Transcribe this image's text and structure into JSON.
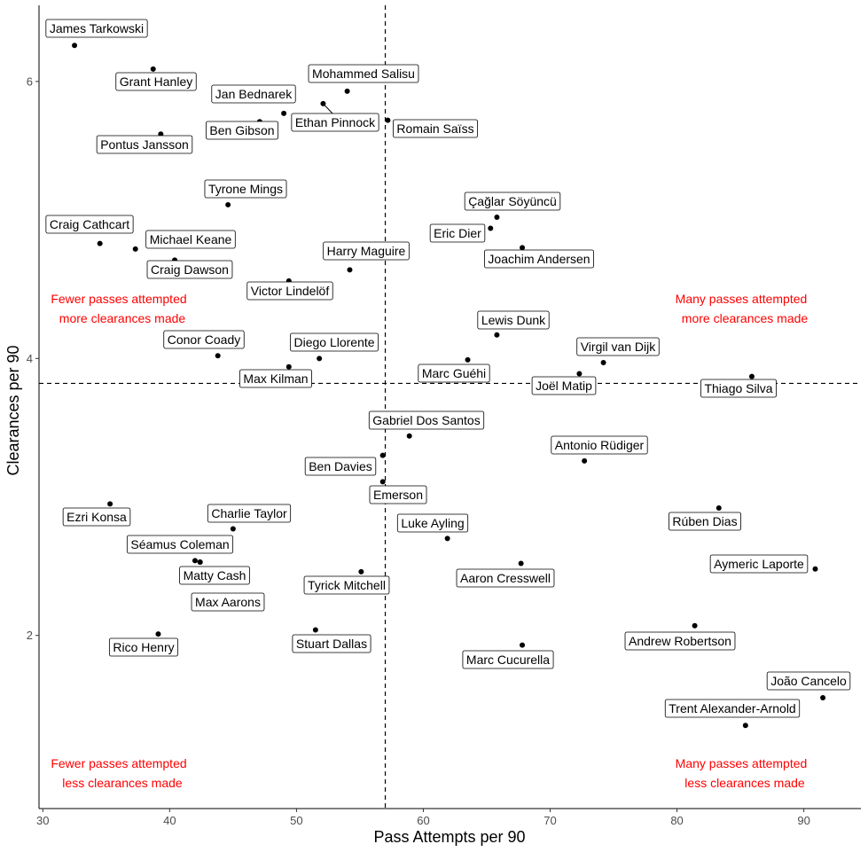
{
  "chart_data": {
    "type": "scatter",
    "title": "",
    "xlabel": "Pass Attempts per 90",
    "ylabel": "Clearances per 90",
    "xlim": [
      29.7,
      94.5
    ],
    "ylim": [
      0.75,
      6.55
    ],
    "xticks": [
      30,
      40,
      50,
      60,
      70,
      80,
      90
    ],
    "yticks": [
      2,
      4,
      6
    ],
    "grid": false,
    "ref_lines": {
      "x": 57,
      "y": 3.82
    },
    "annotation_color": "#ff0000",
    "quadrant_labels": [
      {
        "line1": "Fewer passes attempted",
        "line2": "more clearances made",
        "corner": "top-left"
      },
      {
        "line1": "Many passes attempted",
        "line2": "more clearances made",
        "corner": "top-right"
      },
      {
        "line1": "Fewer passes attempted",
        "line2": "less clearances made",
        "corner": "bottom-left"
      },
      {
        "line1": "Many passes attempted",
        "line2": "less clearances made",
        "corner": "bottom-right"
      }
    ],
    "points": [
      {
        "name": "James Tarkowski",
        "x": 32.5,
        "y": 6.26
      },
      {
        "name": "Grant Hanley",
        "x": 38.7,
        "y": 6.09
      },
      {
        "name": "Mohammed Salisu",
        "x": 54.0,
        "y": 5.93
      },
      {
        "name": "Jan Bednarek",
        "x": 49.0,
        "y": 5.77
      },
      {
        "name": "Ethan Pinnock",
        "x": 52.1,
        "y": 5.84
      },
      {
        "name": "Ben Gibson",
        "x": 47.1,
        "y": 5.71
      },
      {
        "name": "Romain Saïss",
        "x": 57.2,
        "y": 5.72
      },
      {
        "name": "Pontus Jansson",
        "x": 39.3,
        "y": 5.62
      },
      {
        "name": "Tyrone Mings",
        "x": 44.6,
        "y": 5.11
      },
      {
        "name": "Çağlar Söyüncü",
        "x": 65.8,
        "y": 5.02
      },
      {
        "name": "Eric Dier",
        "x": 65.3,
        "y": 4.94
      },
      {
        "name": "Craig Cathcart",
        "x": 34.5,
        "y": 4.83
      },
      {
        "name": "Michael Keane",
        "x": 37.3,
        "y": 4.79
      },
      {
        "name": "Joachim Andersen",
        "x": 67.8,
        "y": 4.8
      },
      {
        "name": "Craig Dawson",
        "x": 40.4,
        "y": 4.71
      },
      {
        "name": "Harry Maguire",
        "x": 54.2,
        "y": 4.64
      },
      {
        "name": "Victor Lindelöf",
        "x": 49.4,
        "y": 4.56
      },
      {
        "name": "Lewis Dunk",
        "x": 65.8,
        "y": 4.17
      },
      {
        "name": "Conor Coady",
        "x": 43.8,
        "y": 4.02
      },
      {
        "name": "Diego Llorente",
        "x": 51.8,
        "y": 4.0
      },
      {
        "name": "Virgil van Dijk",
        "x": 74.2,
        "y": 3.97
      },
      {
        "name": "Marc Guéhi",
        "x": 63.5,
        "y": 3.99
      },
      {
        "name": "Max Kilman",
        "x": 49.4,
        "y": 3.94
      },
      {
        "name": "Joël Matip",
        "x": 72.3,
        "y": 3.89
      },
      {
        "name": "Thiago Silva",
        "x": 85.9,
        "y": 3.87
      },
      {
        "name": "Gabriel Dos Santos",
        "x": 58.9,
        "y": 3.44
      },
      {
        "name": "Antonio Rüdiger",
        "x": 72.7,
        "y": 3.26
      },
      {
        "name": "Ben Davies",
        "x": 56.8,
        "y": 3.3
      },
      {
        "name": "Emerson",
        "x": 56.8,
        "y": 3.11
      },
      {
        "name": "Ezri Konsa",
        "x": 35.3,
        "y": 2.95
      },
      {
        "name": "Rúben Dias",
        "x": 83.3,
        "y": 2.92
      },
      {
        "name": "Charlie Taylor",
        "x": 45.0,
        "y": 2.77
      },
      {
        "name": "Luke Ayling",
        "x": 61.9,
        "y": 2.7
      },
      {
        "name": "Séamus Coleman",
        "x": 42.0,
        "y": 2.54
      },
      {
        "name": "Matty Cash",
        "x": 42.4,
        "y": 2.53
      },
      {
        "name": "Aaron Cresswell",
        "x": 67.7,
        "y": 2.52
      },
      {
        "name": "Aymeric Laporte",
        "x": 90.9,
        "y": 2.48
      },
      {
        "name": "Tyrick Mitchell",
        "x": 55.1,
        "y": 2.46
      },
      {
        "name": "Max Aarons",
        "x": 42.4,
        "y": 2.53
      },
      {
        "name": "Andrew Robertson",
        "x": 81.4,
        "y": 2.07
      },
      {
        "name": "Stuart Dallas",
        "x": 51.5,
        "y": 2.04
      },
      {
        "name": "Rico Henry",
        "x": 39.1,
        "y": 2.01
      },
      {
        "name": "Marc Cucurella",
        "x": 67.8,
        "y": 1.93
      },
      {
        "name": "João Cancelo",
        "x": 91.5,
        "y": 1.55
      },
      {
        "name": "Trent Alexander-Arnold",
        "x": 85.4,
        "y": 1.35
      }
    ]
  }
}
